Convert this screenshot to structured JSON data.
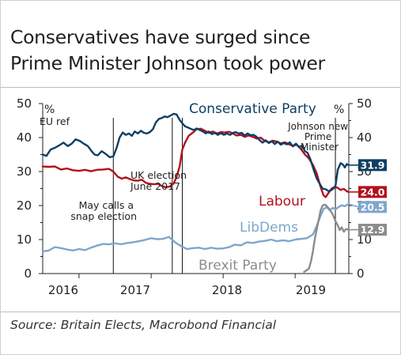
{
  "title_lines": [
    "Conservatives have surged since",
    "Prime Minister Johnson took power"
  ],
  "source": "Source: Britain Elects, Macrobond Financial",
  "chart_data": {
    "type": "line",
    "ylim": [
      0,
      50
    ],
    "yticks": [
      0,
      10,
      20,
      30,
      40,
      50
    ],
    "yunit_left": "%",
    "yunit_right": "%",
    "xlim": [
      "2015-07-01",
      "2019-09-30"
    ],
    "x_tick_labels": [
      "2016",
      "2017",
      "2018",
      "2019"
    ],
    "series": [
      {
        "name": "Conservative Party",
        "color": "#0e3f63",
        "end_label": "31.9",
        "points": [
          [
            "2015-07-01",
            35
          ],
          [
            "2015-07-20",
            34.6
          ],
          [
            "2015-08-10",
            36.5
          ],
          [
            "2015-09-01",
            37
          ],
          [
            "2015-09-25",
            37.8
          ],
          [
            "2015-10-15",
            38.5
          ],
          [
            "2015-11-05",
            37.5
          ],
          [
            "2015-11-25",
            38.2
          ],
          [
            "2015-12-15",
            39.5
          ],
          [
            "2016-01-05",
            39
          ],
          [
            "2016-01-25",
            38.2
          ],
          [
            "2016-02-15",
            37.5
          ],
          [
            "2016-03-05",
            36
          ],
          [
            "2016-03-20",
            35
          ],
          [
            "2016-04-05",
            34.8
          ],
          [
            "2016-04-25",
            36
          ],
          [
            "2016-05-15",
            35.2
          ],
          [
            "2016-06-05",
            34.2
          ],
          [
            "2016-06-23",
            34.5
          ],
          [
            "2016-07-10",
            37
          ],
          [
            "2016-07-25",
            40
          ],
          [
            "2016-08-10",
            41.5
          ],
          [
            "2016-08-25",
            40.8
          ],
          [
            "2016-09-10",
            41.2
          ],
          [
            "2016-09-25",
            40.5
          ],
          [
            "2016-10-10",
            41.8
          ],
          [
            "2016-10-25",
            41.2
          ],
          [
            "2016-11-10",
            42
          ],
          [
            "2016-11-25",
            41.4
          ],
          [
            "2016-12-10",
            41.2
          ],
          [
            "2016-12-25",
            41.6
          ],
          [
            "2017-01-10",
            42.5
          ],
          [
            "2017-01-25",
            44.5
          ],
          [
            "2017-02-10",
            45.5
          ],
          [
            "2017-02-25",
            45.8
          ],
          [
            "2017-03-10",
            46.2
          ],
          [
            "2017-03-25",
            46
          ],
          [
            "2017-04-10",
            46.5
          ],
          [
            "2017-04-25",
            47
          ],
          [
            "2017-05-10",
            46.8
          ],
          [
            "2017-05-25",
            45.2
          ],
          [
            "2017-06-08",
            44.2
          ],
          [
            "2017-06-22",
            43.3
          ],
          [
            "2017-07-05",
            43
          ],
          [
            "2017-07-20",
            42.6
          ],
          [
            "2017-08-05",
            42.2
          ],
          [
            "2017-08-20",
            42.7
          ],
          [
            "2017-09-05",
            42.2
          ],
          [
            "2017-09-20",
            41.8
          ],
          [
            "2017-10-05",
            41.2
          ],
          [
            "2017-10-20",
            41.8
          ],
          [
            "2017-11-05",
            41
          ],
          [
            "2017-11-20",
            41.4
          ],
          [
            "2017-12-05",
            40.8
          ],
          [
            "2017-12-20",
            41.3
          ],
          [
            "2018-01-05",
            40.8
          ],
          [
            "2018-01-20",
            41.2
          ],
          [
            "2018-02-05",
            40.8
          ],
          [
            "2018-02-20",
            41.4
          ],
          [
            "2018-03-05",
            41.6
          ],
          [
            "2018-03-20",
            41.2
          ],
          [
            "2018-04-05",
            41.4
          ],
          [
            "2018-04-20",
            40.6
          ],
          [
            "2018-05-05",
            41.2
          ],
          [
            "2018-05-20",
            40.7
          ],
          [
            "2018-06-05",
            40.8
          ],
          [
            "2018-06-20",
            40.2
          ],
          [
            "2018-07-05",
            39.2
          ],
          [
            "2018-07-20",
            38.5
          ],
          [
            "2018-08-05",
            39.2
          ],
          [
            "2018-08-20",
            38.4
          ],
          [
            "2018-09-05",
            38.9
          ],
          [
            "2018-09-20",
            38.1
          ],
          [
            "2018-10-05",
            38.8
          ],
          [
            "2018-10-20",
            37.9
          ],
          [
            "2018-11-05",
            38.4
          ],
          [
            "2018-11-20",
            38
          ],
          [
            "2018-12-05",
            38.6
          ],
          [
            "2018-12-20",
            37.4
          ],
          [
            "2019-01-05",
            38.2
          ],
          [
            "2019-01-20",
            37.2
          ],
          [
            "2019-02-05",
            37.6
          ],
          [
            "2019-02-20",
            36
          ],
          [
            "2019-03-05",
            35.5
          ],
          [
            "2019-03-20",
            33.5
          ],
          [
            "2019-04-05",
            30.5
          ],
          [
            "2019-04-20",
            28
          ],
          [
            "2019-05-05",
            26.5
          ],
          [
            "2019-05-20",
            25
          ],
          [
            "2019-06-05",
            24.8
          ],
          [
            "2019-06-20",
            24.2
          ],
          [
            "2019-07-05",
            24.6
          ],
          [
            "2019-07-24",
            25.5
          ],
          [
            "2019-08-05",
            30.5
          ],
          [
            "2019-08-20",
            32.5
          ],
          [
            "2019-09-01",
            32
          ],
          [
            "2019-09-10",
            31.2
          ],
          [
            "2019-09-20",
            32.2
          ],
          [
            "2019-09-28",
            31.9
          ]
        ]
      },
      {
        "name": "Labour",
        "color": "#b3111e",
        "end_label": "24.0",
        "points": [
          [
            "2015-07-01",
            31.5
          ],
          [
            "2015-08-01",
            31.4
          ],
          [
            "2015-09-01",
            31.5
          ],
          [
            "2015-10-01",
            30.6
          ],
          [
            "2015-11-01",
            30.9
          ],
          [
            "2015-12-01",
            30.4
          ],
          [
            "2016-01-01",
            30.2
          ],
          [
            "2016-02-01",
            30.5
          ],
          [
            "2016-03-01",
            30.1
          ],
          [
            "2016-04-01",
            30.5
          ],
          [
            "2016-05-01",
            30.6
          ],
          [
            "2016-06-01",
            30.8
          ],
          [
            "2016-06-23",
            30
          ],
          [
            "2016-07-15",
            28.5
          ],
          [
            "2016-08-05",
            27.9
          ],
          [
            "2016-08-25",
            28.3
          ],
          [
            "2016-09-15",
            27.8
          ],
          [
            "2016-10-05",
            27.4
          ],
          [
            "2016-10-25",
            27.3
          ],
          [
            "2016-11-15",
            27.6
          ],
          [
            "2016-12-05",
            26.7
          ],
          [
            "2016-12-25",
            26.4
          ],
          [
            "2017-01-15",
            26.3
          ],
          [
            "2017-02-05",
            26.4
          ],
          [
            "2017-02-25",
            25.7
          ],
          [
            "2017-03-15",
            25.4
          ],
          [
            "2017-04-05",
            25.6
          ],
          [
            "2017-04-25",
            26.5
          ],
          [
            "2017-05-10",
            28.5
          ],
          [
            "2017-05-25",
            31.5
          ],
          [
            "2017-06-08",
            36.5
          ],
          [
            "2017-06-22",
            38.5
          ],
          [
            "2017-07-10",
            40.5
          ],
          [
            "2017-08-01",
            41.5
          ],
          [
            "2017-08-20",
            42.5
          ],
          [
            "2017-09-10",
            42.6
          ],
          [
            "2017-10-01",
            42
          ],
          [
            "2017-10-20",
            41.4
          ],
          [
            "2017-11-10",
            41.8
          ],
          [
            "2017-12-01",
            41.2
          ],
          [
            "2017-12-20",
            41.6
          ],
          [
            "2018-01-10",
            41.5
          ],
          [
            "2018-02-01",
            41.7
          ],
          [
            "2018-02-20",
            41.2
          ],
          [
            "2018-03-10",
            40.6
          ],
          [
            "2018-04-01",
            40.8
          ],
          [
            "2018-04-20",
            40.2
          ],
          [
            "2018-05-10",
            40.6
          ],
          [
            "2018-06-01",
            40.2
          ],
          [
            "2018-06-20",
            39.7
          ],
          [
            "2018-07-10",
            40
          ],
          [
            "2018-08-01",
            39
          ],
          [
            "2018-08-20",
            38.6
          ],
          [
            "2018-09-10",
            39.1
          ],
          [
            "2018-10-01",
            38.8
          ],
          [
            "2018-10-20",
            38.3
          ],
          [
            "2018-11-10",
            38.6
          ],
          [
            "2018-12-01",
            38
          ],
          [
            "2018-12-20",
            37.6
          ],
          [
            "2019-01-10",
            37.9
          ],
          [
            "2019-02-01",
            36.5
          ],
          [
            "2019-02-20",
            35
          ],
          [
            "2019-03-10",
            34
          ],
          [
            "2019-04-01",
            32
          ],
          [
            "2019-04-20",
            29.5
          ],
          [
            "2019-05-10",
            25.5
          ],
          [
            "2019-05-25",
            23
          ],
          [
            "2019-06-05",
            22.5
          ],
          [
            "2019-06-20",
            23.8
          ],
          [
            "2019-07-05",
            25
          ],
          [
            "2019-07-20",
            25.5
          ],
          [
            "2019-08-05",
            25.2
          ],
          [
            "2019-08-20",
            24.6
          ],
          [
            "2019-09-05",
            24.9
          ],
          [
            "2019-09-20",
            24.2
          ],
          [
            "2019-09-28",
            24.0
          ]
        ]
      },
      {
        "name": "LibDems",
        "color": "#7fa6cc",
        "end_label": "20.5",
        "points": [
          [
            "2015-07-01",
            6.5
          ],
          [
            "2015-08-01",
            6.8
          ],
          [
            "2015-09-01",
            7.8
          ],
          [
            "2015-10-01",
            7.5
          ],
          [
            "2015-11-01",
            7.1
          ],
          [
            "2015-12-01",
            6.8
          ],
          [
            "2016-01-01",
            7.2
          ],
          [
            "2016-02-01",
            6.9
          ],
          [
            "2016-03-01",
            7.6
          ],
          [
            "2016-04-01",
            8.2
          ],
          [
            "2016-05-01",
            8.7
          ],
          [
            "2016-06-01",
            8.6
          ],
          [
            "2016-07-01",
            8.9
          ],
          [
            "2016-08-01",
            8.6
          ],
          [
            "2016-09-01",
            9
          ],
          [
            "2016-10-01",
            9.2
          ],
          [
            "2016-11-01",
            9.5
          ],
          [
            "2016-12-01",
            9.9
          ],
          [
            "2017-01-01",
            10.4
          ],
          [
            "2017-02-01",
            10.1
          ],
          [
            "2017-03-01",
            10.2
          ],
          [
            "2017-04-01",
            10.8
          ],
          [
            "2017-05-01",
            9.2
          ],
          [
            "2017-06-01",
            8.1
          ],
          [
            "2017-07-01",
            7.2
          ],
          [
            "2017-08-01",
            7.5
          ],
          [
            "2017-09-01",
            7.6
          ],
          [
            "2017-10-01",
            7.2
          ],
          [
            "2017-11-01",
            7.6
          ],
          [
            "2017-12-01",
            7.3
          ],
          [
            "2018-01-01",
            7.4
          ],
          [
            "2018-02-01",
            7.8
          ],
          [
            "2018-03-01",
            8.5
          ],
          [
            "2018-04-01",
            8.3
          ],
          [
            "2018-05-01",
            9.2
          ],
          [
            "2018-06-01",
            9
          ],
          [
            "2018-07-01",
            9.4
          ],
          [
            "2018-08-01",
            9.6
          ],
          [
            "2018-09-01",
            10
          ],
          [
            "2018-10-01",
            9.5
          ],
          [
            "2018-11-01",
            9.8
          ],
          [
            "2018-12-01",
            9.5
          ],
          [
            "2019-01-01",
            10
          ],
          [
            "2019-02-01",
            10.2
          ],
          [
            "2019-03-01",
            10.4
          ],
          [
            "2019-04-01",
            11.5
          ],
          [
            "2019-04-20",
            14
          ],
          [
            "2019-05-10",
            17
          ],
          [
            "2019-05-25",
            19
          ],
          [
            "2019-06-10",
            19.5
          ],
          [
            "2019-06-25",
            18.7
          ],
          [
            "2019-07-10",
            19.3
          ],
          [
            "2019-07-25",
            18.9
          ],
          [
            "2019-08-10",
            19.6
          ],
          [
            "2019-08-25",
            20.1
          ],
          [
            "2019-09-10",
            19.8
          ],
          [
            "2019-09-28",
            20.5
          ]
        ]
      },
      {
        "name": "Brexit Party",
        "color": "#8c8c8c",
        "end_label": "12.9",
        "points": [
          [
            "2019-02-15",
            0.5
          ],
          [
            "2019-03-01",
            1
          ],
          [
            "2019-03-12",
            1.5
          ],
          [
            "2019-03-22",
            3.5
          ],
          [
            "2019-04-01",
            6.5
          ],
          [
            "2019-04-10",
            10
          ],
          [
            "2019-04-20",
            13
          ],
          [
            "2019-05-01",
            16
          ],
          [
            "2019-05-10",
            18.5
          ],
          [
            "2019-05-20",
            20
          ],
          [
            "2019-06-01",
            20.3
          ],
          [
            "2019-06-12",
            19.7
          ],
          [
            "2019-06-25",
            18.8
          ],
          [
            "2019-07-10",
            17.5
          ],
          [
            "2019-07-24",
            15.5
          ],
          [
            "2019-08-05",
            14.2
          ],
          [
            "2019-08-15",
            12.8
          ],
          [
            "2019-08-25",
            13.6
          ],
          [
            "2019-09-05",
            12.3
          ],
          [
            "2019-09-15",
            13.1
          ],
          [
            "2019-09-28",
            12.9
          ]
        ]
      }
    ],
    "annotations": [
      {
        "text": "EU ref",
        "date": "2016-06-23"
      },
      {
        "text_lines": [
          "May calls a",
          "snap election"
        ],
        "date": "2017-04-18"
      },
      {
        "text_lines": [
          "UK election",
          "June 2017"
        ],
        "date": "2017-06-08"
      },
      {
        "text_lines": [
          "Johnson new",
          "Prime",
          "Minister"
        ],
        "date": "2019-07-24"
      }
    ],
    "legend_placement": "inline labels on chart",
    "grid": false
  }
}
